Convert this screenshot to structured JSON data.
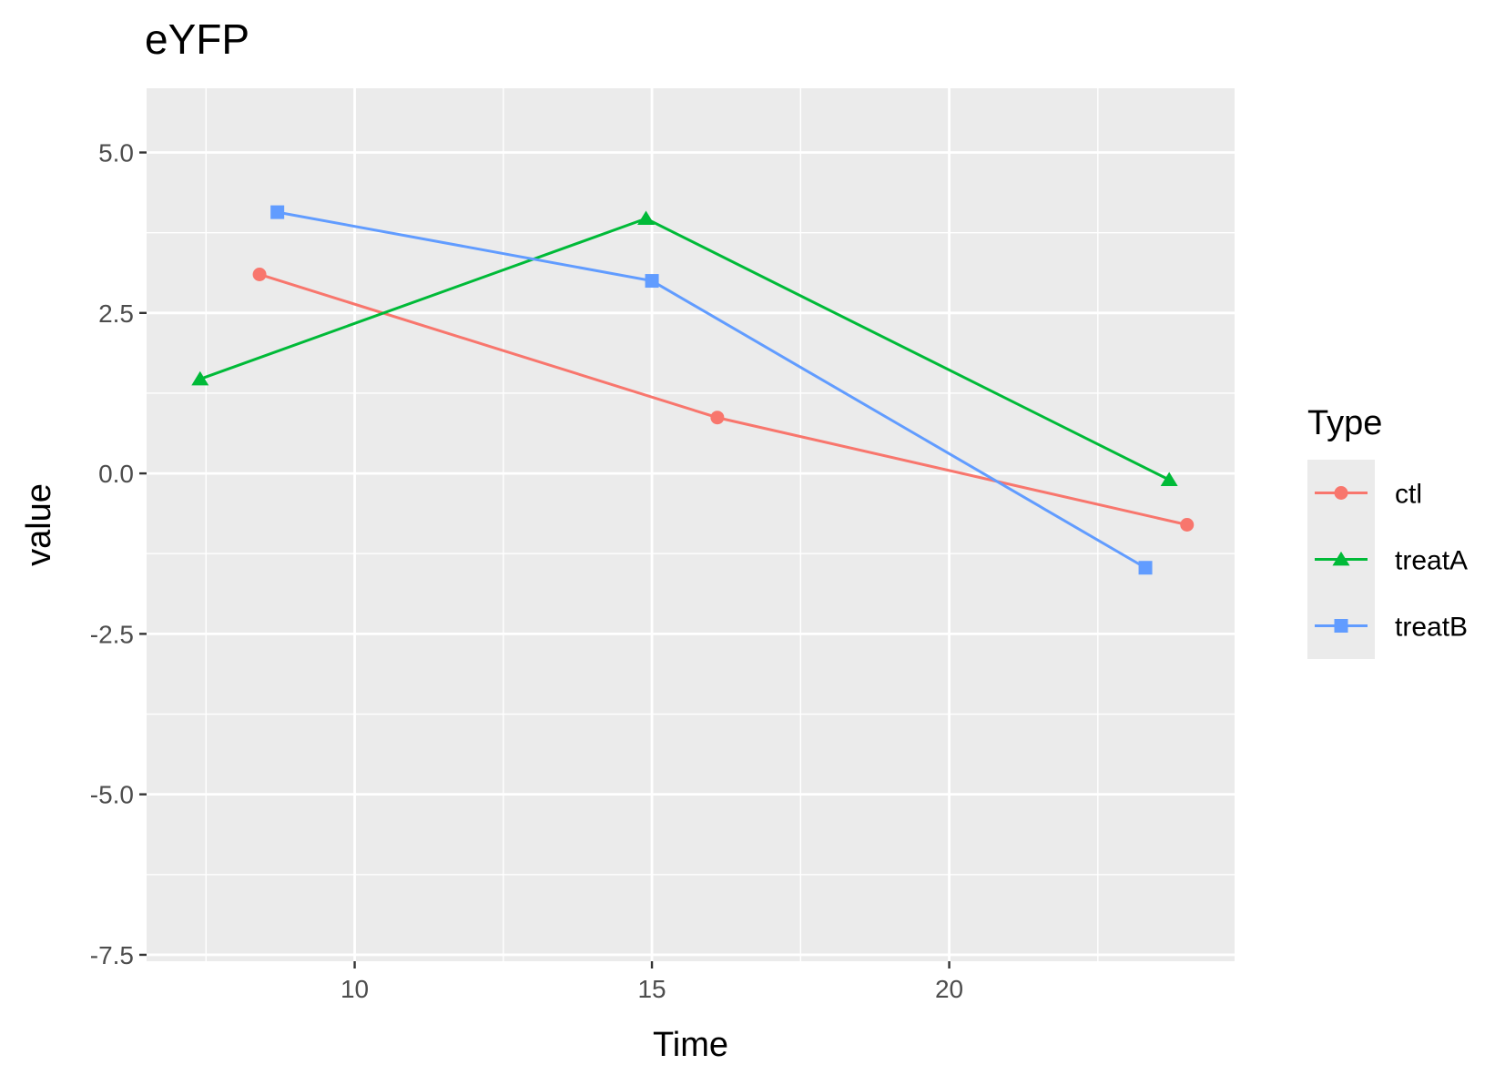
{
  "chart_data": {
    "type": "line",
    "title": "eYFP",
    "xlabel": "Time",
    "ylabel": "value",
    "xlim": [
      6.5,
      24.8
    ],
    "ylim": [
      -7.6,
      6.0
    ],
    "xticks": [
      10,
      15,
      20
    ],
    "xtick_labels": [
      "10",
      "15",
      "20"
    ],
    "yticks": [
      -7.5,
      -5.0,
      -2.5,
      0.0,
      2.5,
      5.0
    ],
    "ytick_labels": [
      "-7.5",
      "-5.0",
      "-2.5",
      "0.0",
      "2.5",
      "5.0"
    ],
    "grid": true,
    "legend": {
      "title": "Type",
      "position": "right"
    },
    "series": [
      {
        "name": "ctl",
        "color": "#F8766D",
        "marker": "circle",
        "x": [
          8.4,
          16.1,
          24.0
        ],
        "y": [
          3.1,
          0.87,
          -0.8
        ]
      },
      {
        "name": "treatA",
        "color": "#00BA38",
        "marker": "triangle",
        "x": [
          7.4,
          14.9,
          23.7
        ],
        "y": [
          1.47,
          3.97,
          -0.1
        ]
      },
      {
        "name": "treatB",
        "color": "#619CFF",
        "marker": "square",
        "x": [
          8.7,
          15.0,
          23.3
        ],
        "y": [
          4.07,
          3.0,
          -1.47
        ]
      }
    ]
  }
}
